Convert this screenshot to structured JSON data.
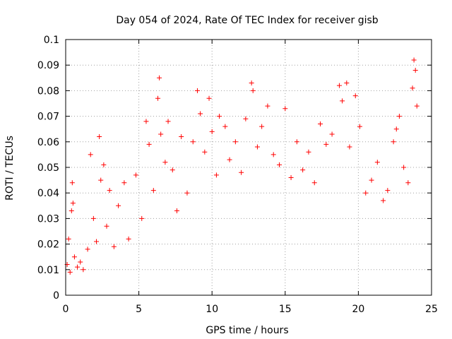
{
  "chart_data": {
    "type": "scatter",
    "title": "Day 054 of 2024, Rate Of TEC Index for receiver gisb",
    "xlabel": "GPS time / hours",
    "ylabel": "ROTI / TECUs",
    "xlim": [
      0,
      25
    ],
    "ylim": [
      0,
      0.1
    ],
    "xticks": [
      0,
      5,
      10,
      15,
      20,
      25
    ],
    "xtick_labels": [
      "0",
      "5",
      "10",
      "15",
      "20",
      "25"
    ],
    "yticks": [
      0,
      0.01,
      0.02,
      0.03,
      0.04,
      0.05,
      0.06,
      0.07,
      0.08,
      0.09,
      0.1
    ],
    "ytick_labels": [
      "0",
      "0.01",
      "0.02",
      "0.03",
      "0.04",
      "0.05",
      "0.06",
      "0.07",
      "0.08",
      "0.09",
      "0.1"
    ],
    "grid": true,
    "marker": "plus",
    "color": "#ff0000",
    "series": [
      {
        "name": "ROTI",
        "points": [
          [
            0.1,
            0.012
          ],
          [
            0.2,
            0.022
          ],
          [
            0.3,
            0.009
          ],
          [
            0.4,
            0.033
          ],
          [
            0.45,
            0.044
          ],
          [
            0.5,
            0.036
          ],
          [
            0.6,
            0.015
          ],
          [
            0.8,
            0.011
          ],
          [
            1.0,
            0.013
          ],
          [
            1.2,
            0.01
          ],
          [
            1.5,
            0.018
          ],
          [
            1.7,
            0.055
          ],
          [
            1.9,
            0.03
          ],
          [
            2.1,
            0.021
          ],
          [
            2.3,
            0.062
          ],
          [
            2.4,
            0.045
          ],
          [
            2.6,
            0.051
          ],
          [
            2.8,
            0.027
          ],
          [
            3.0,
            0.041
          ],
          [
            3.3,
            0.019
          ],
          [
            3.6,
            0.035
          ],
          [
            4.0,
            0.044
          ],
          [
            4.3,
            0.022
          ],
          [
            4.8,
            0.047
          ],
          [
            5.2,
            0.03
          ],
          [
            5.5,
            0.068
          ],
          [
            5.7,
            0.059
          ],
          [
            6.0,
            0.041
          ],
          [
            6.3,
            0.077
          ],
          [
            6.4,
            0.085
          ],
          [
            6.5,
            0.063
          ],
          [
            6.8,
            0.052
          ],
          [
            7.0,
            0.068
          ],
          [
            7.3,
            0.049
          ],
          [
            7.6,
            0.033
          ],
          [
            7.9,
            0.062
          ],
          [
            8.3,
            0.04
          ],
          [
            8.7,
            0.06
          ],
          [
            9.0,
            0.08
          ],
          [
            9.2,
            0.071
          ],
          [
            9.5,
            0.056
          ],
          [
            9.8,
            0.077
          ],
          [
            10.0,
            0.064
          ],
          [
            10.3,
            0.047
          ],
          [
            10.5,
            0.07
          ],
          [
            10.9,
            0.066
          ],
          [
            11.2,
            0.053
          ],
          [
            11.6,
            0.06
          ],
          [
            12.0,
            0.048
          ],
          [
            12.3,
            0.069
          ],
          [
            12.7,
            0.083
          ],
          [
            12.8,
            0.08
          ],
          [
            13.1,
            0.058
          ],
          [
            13.4,
            0.066
          ],
          [
            13.8,
            0.074
          ],
          [
            14.2,
            0.055
          ],
          [
            14.6,
            0.051
          ],
          [
            15.0,
            0.073
          ],
          [
            15.4,
            0.046
          ],
          [
            15.8,
            0.06
          ],
          [
            16.2,
            0.049
          ],
          [
            16.6,
            0.056
          ],
          [
            17.0,
            0.044
          ],
          [
            17.4,
            0.067
          ],
          [
            17.8,
            0.059
          ],
          [
            18.2,
            0.063
          ],
          [
            18.7,
            0.082
          ],
          [
            18.9,
            0.076
          ],
          [
            19.2,
            0.083
          ],
          [
            19.4,
            0.058
          ],
          [
            19.8,
            0.078
          ],
          [
            20.1,
            0.066
          ],
          [
            20.5,
            0.04
          ],
          [
            20.9,
            0.045
          ],
          [
            21.3,
            0.052
          ],
          [
            21.7,
            0.037
          ],
          [
            22.0,
            0.041
          ],
          [
            22.4,
            0.06
          ],
          [
            22.6,
            0.065
          ],
          [
            22.8,
            0.07
          ],
          [
            23.1,
            0.05
          ],
          [
            23.4,
            0.044
          ],
          [
            23.7,
            0.081
          ],
          [
            23.8,
            0.092
          ],
          [
            23.9,
            0.088
          ],
          [
            24.0,
            0.074
          ]
        ]
      }
    ]
  }
}
